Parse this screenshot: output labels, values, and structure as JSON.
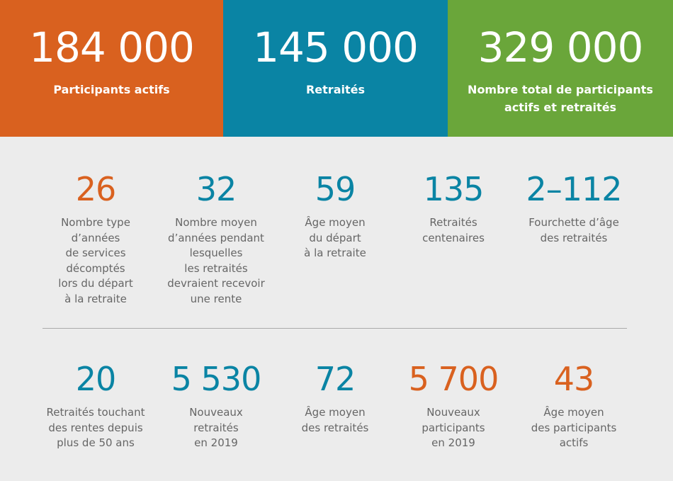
{
  "summary": [
    {
      "value": "184 000",
      "lines": [
        "Participants actifs"
      ],
      "color": "#d9611f"
    },
    {
      "value": "145 000",
      "lines": [
        "Retraités"
      ],
      "color": "#0a84a4"
    },
    {
      "value": "329 000",
      "lines": [
        "Nombre total de participants",
        "actifs et retraités"
      ],
      "color": "#6aa63a"
    }
  ],
  "stats": [
    [
      {
        "value": "26",
        "lines": [
          "Nombre type",
          "d’années",
          "de services",
          "décomptés",
          "lors du départ",
          "à la retraite"
        ],
        "color": "#d9611f"
      },
      {
        "value": "32",
        "lines": [
          "Nombre moyen",
          "d’années pendant",
          "lesquelles",
          "les retraités",
          "devraient recevoir",
          "une rente"
        ],
        "color": "#0a84a4"
      },
      {
        "value": "59",
        "lines": [
          "Âge moyen",
          "du départ",
          "à la retraite"
        ],
        "color": "#0a84a4"
      },
      {
        "value": "135",
        "lines": [
          "Retraités",
          "centenaires"
        ],
        "color": "#0a84a4"
      },
      {
        "value": "2–112",
        "lines": [
          "Fourchette d’âge",
          "des retraités"
        ],
        "color": "#0a84a4"
      }
    ],
    [
      {
        "value": "20",
        "lines": [
          "Retraités touchant",
          "des rentes depuis",
          "plus de 50 ans"
        ],
        "color": "#0a84a4"
      },
      {
        "value": "5 530",
        "lines": [
          "Nouveaux",
          "retraités",
          "en 2019"
        ],
        "color": "#0a84a4"
      },
      {
        "value": "72",
        "lines": [
          "Âge moyen",
          "des retraités"
        ],
        "color": "#0a84a4"
      },
      {
        "value": "5 700",
        "lines": [
          "Nouveaux",
          "participants",
          "en 2019"
        ],
        "color": "#d9611f"
      },
      {
        "value": "43",
        "lines": [
          "Âge moyen",
          "des participants",
          "actifs"
        ],
        "color": "#d9611f"
      }
    ]
  ]
}
